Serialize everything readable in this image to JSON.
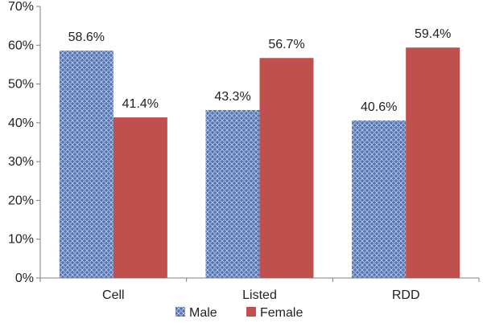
{
  "chart_data": {
    "type": "bar",
    "title": "",
    "xlabel": "",
    "ylabel": "",
    "categories": [
      "Cell",
      "Listed",
      "RDD"
    ],
    "series": [
      {
        "name": "Male",
        "values": [
          58.6,
          43.3,
          40.6
        ],
        "color": "#4f6fb4",
        "pattern": "blue-mesh"
      },
      {
        "name": "Female",
        "values": [
          41.4,
          56.7,
          59.4
        ],
        "color": "#c0504d",
        "pattern": "solid"
      }
    ],
    "data_labels": [
      [
        "58.6%",
        "43.3%",
        "40.6%"
      ],
      [
        "41.4%",
        "56.7%",
        "59.4%"
      ]
    ],
    "ylim": [
      0,
      70
    ],
    "yticks": [
      0,
      10,
      20,
      30,
      40,
      50,
      60,
      70
    ],
    "ytick_labels": [
      "0%",
      "10%",
      "20%",
      "30%",
      "40%",
      "50%",
      "60%",
      "70%"
    ],
    "grid": false,
    "legend_position": "bottom-center"
  }
}
